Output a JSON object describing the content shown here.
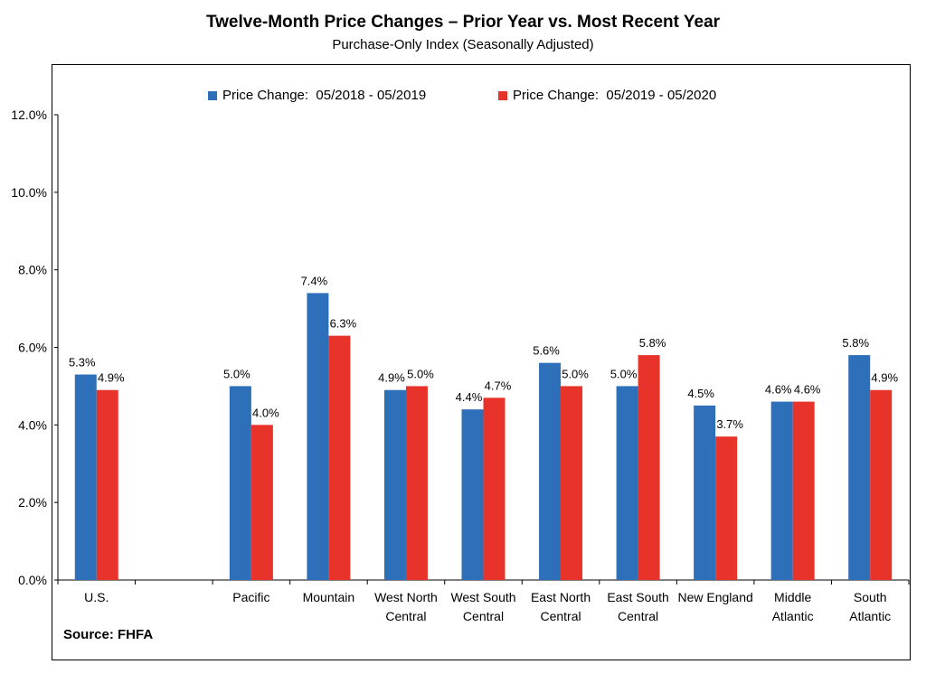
{
  "chart_data": {
    "type": "bar",
    "title": "Twelve-Month Price Changes – Prior Year vs. Most Recent Year",
    "subtitle": "Purchase-Only Index (Seasonally Adjusted)",
    "source": "Source: FHFA",
    "categories": [
      [
        "U.S."
      ],
      [
        ""
      ],
      [
        "Pacific"
      ],
      [
        "Mountain"
      ],
      [
        "West North",
        "Central"
      ],
      [
        "West South",
        "Central"
      ],
      [
        "East North",
        "Central"
      ],
      [
        "East South",
        "Central"
      ],
      [
        "New England"
      ],
      [
        "Middle",
        "Atlantic"
      ],
      [
        "South",
        "Atlantic"
      ]
    ],
    "series": [
      {
        "name": "Price Change:  05/2018 - 05/2019",
        "color": "#2e6fba",
        "values": [
          5.3,
          null,
          5.0,
          7.4,
          4.9,
          4.4,
          5.6,
          5.0,
          4.5,
          4.6,
          5.8
        ],
        "labels": [
          "5.3%",
          "",
          "5.0%",
          "7.4%",
          "4.9%",
          "4.4%",
          "5.6%",
          "5.0%",
          "4.5%",
          "4.6%",
          "5.8%"
        ]
      },
      {
        "name": "Price Change:  05/2019 - 05/2020",
        "color": "#e8332a",
        "values": [
          4.9,
          null,
          4.0,
          6.3,
          5.0,
          4.7,
          5.0,
          5.8,
          3.7,
          4.6,
          4.9
        ],
        "labels": [
          "4.9%",
          "",
          "4.0%",
          "6.3%",
          "5.0%",
          "4.7%",
          "5.0%",
          "5.8%",
          "3.7%",
          "4.6%",
          "4.9%"
        ]
      }
    ],
    "yticks": [
      "0.0%",
      "2.0%",
      "4.0%",
      "6.0%",
      "8.0%",
      "10.0%",
      "12.0%"
    ],
    "ylim": [
      0,
      12
    ],
    "legend_position": "top-center",
    "grid": false
  }
}
